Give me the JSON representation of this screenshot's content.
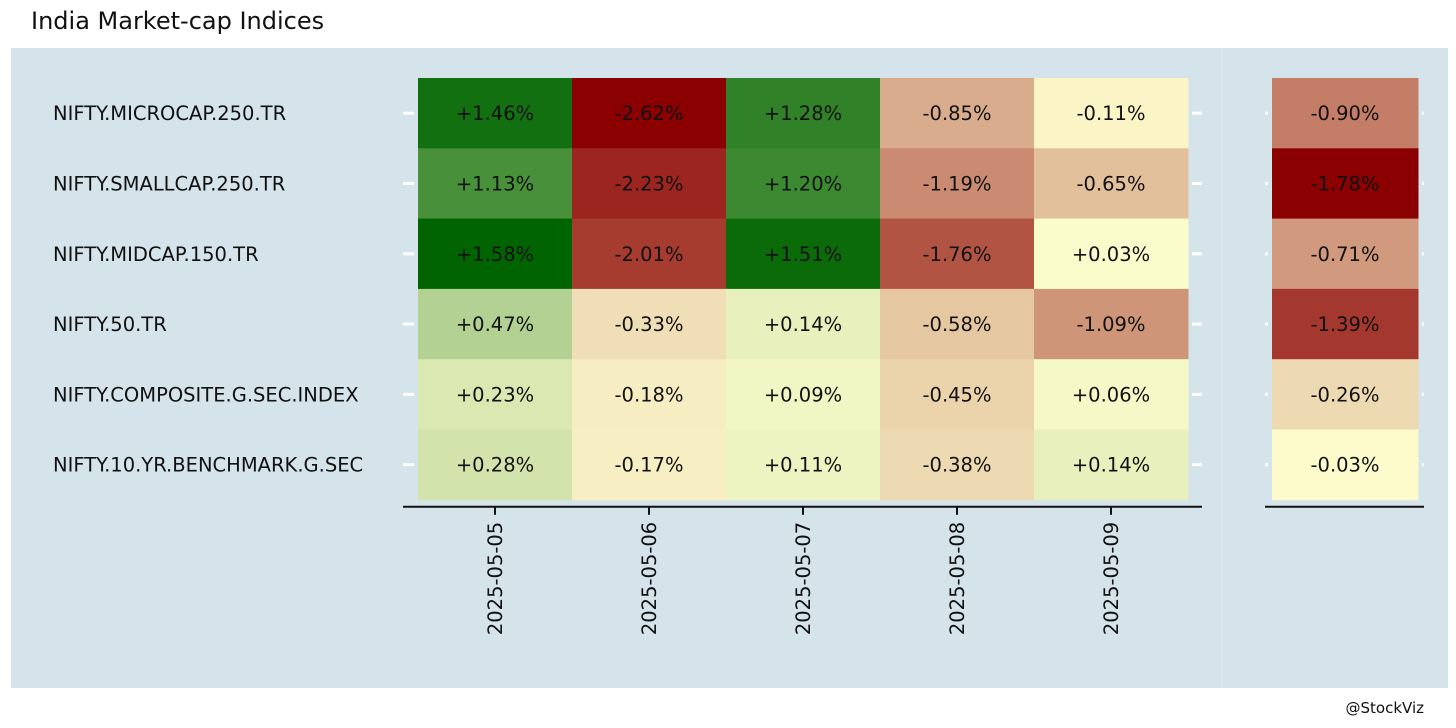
{
  "title": "India Market-cap Indices",
  "credit": "@StockViz",
  "colors": {
    "panel_bg": "#d5e3ea",
    "page_bg": "#ffffff",
    "text": "#111111",
    "scale_low": "#8b0000",
    "scale_mid": "#ffffd0",
    "scale_high": "#006400"
  },
  "chart_data": [
    {
      "type": "heatmap",
      "title": "India Market-cap Indices",
      "rows": [
        "NIFTY.MICROCAP.250.TR",
        "NIFTY.SMALLCAP.250.TR",
        "NIFTY.MIDCAP.150.TR",
        "NIFTY.50.TR",
        "NIFTY.COMPOSITE.G.SEC.INDEX",
        "NIFTY.10.YR.BENCHMARK.G.SEC"
      ],
      "columns": [
        "2025-05-05",
        "2025-05-06",
        "2025-05-07",
        "2025-05-08",
        "2025-05-09"
      ],
      "values": [
        [
          1.46,
          -2.62,
          1.28,
          -0.85,
          -0.11
        ],
        [
          1.13,
          -2.23,
          1.2,
          -1.19,
          -0.65
        ],
        [
          1.58,
          -2.01,
          1.51,
          -1.76,
          0.03
        ],
        [
          0.47,
          -0.33,
          0.14,
          -0.58,
          -1.09
        ],
        [
          0.23,
          -0.18,
          0.09,
          -0.45,
          0.06
        ],
        [
          0.28,
          -0.17,
          0.11,
          -0.38,
          0.14
        ]
      ],
      "labels": [
        [
          "+1.46%",
          "-2.62%",
          "+1.28%",
          "-0.85%",
          "-0.11%"
        ],
        [
          "+1.13%",
          "-2.23%",
          "+1.20%",
          "-1.19%",
          "-0.65%"
        ],
        [
          "+1.58%",
          "-2.01%",
          "+1.51%",
          "-1.76%",
          "+0.03%"
        ],
        [
          "+0.47%",
          "-0.33%",
          "+0.14%",
          "-0.58%",
          "-1.09%"
        ],
        [
          "+0.23%",
          "-0.18%",
          "+0.09%",
          "-0.45%",
          "+0.06%"
        ],
        [
          "+0.28%",
          "-0.17%",
          "+0.11%",
          "-0.38%",
          "+0.14%"
        ]
      ]
    },
    {
      "type": "heatmap",
      "rows": [
        "NIFTY.MICROCAP.250.TR",
        "NIFTY.SMALLCAP.250.TR",
        "NIFTY.MIDCAP.150.TR",
        "NIFTY.50.TR",
        "NIFTY.COMPOSITE.G.SEC.INDEX",
        "NIFTY.10.YR.BENCHMARK.G.SEC"
      ],
      "columns": [
        ""
      ],
      "values": [
        [
          -0.9
        ],
        [
          -1.78
        ],
        [
          -0.71
        ],
        [
          -1.39
        ],
        [
          -0.26
        ],
        [
          -0.03
        ]
      ],
      "labels": [
        [
          "-0.90%"
        ],
        [
          "-1.78%"
        ],
        [
          "-0.71%"
        ],
        [
          "-1.39%"
        ],
        [
          "-0.26%"
        ],
        [
          "-0.03%"
        ]
      ]
    }
  ]
}
